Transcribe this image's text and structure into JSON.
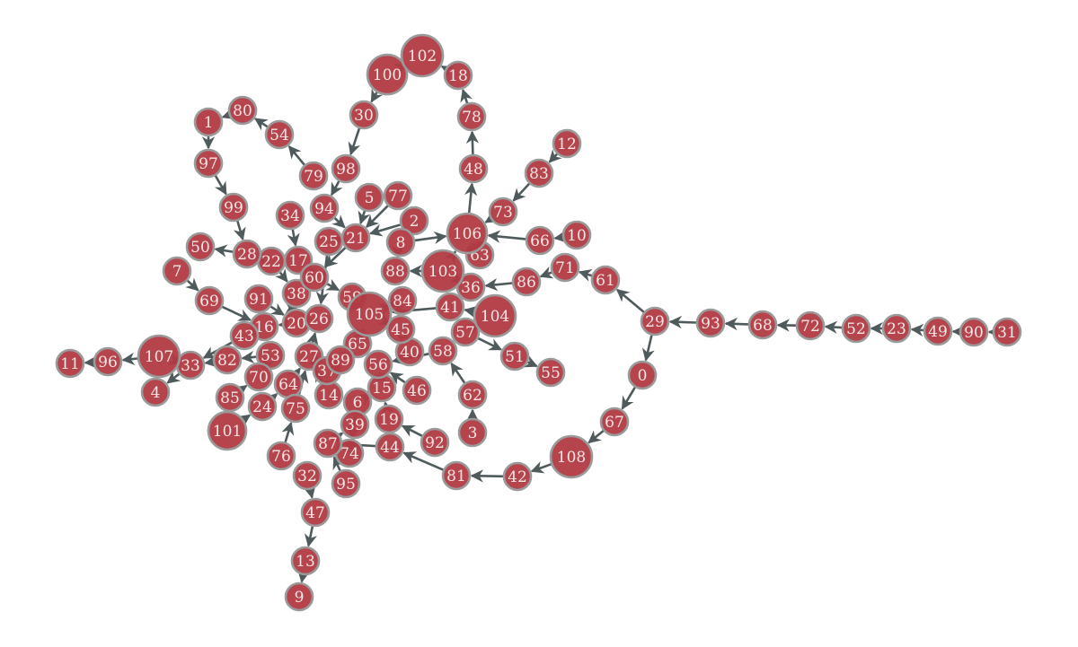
{
  "graph": {
    "node_color": "#b23a43",
    "node_border_color": "#9a9a9a",
    "edge_color": "#4f5a5c",
    "label_color": "#f4e6e6",
    "directed": true,
    "nodes": [
      {
        "id": "0"
      },
      {
        "id": "1"
      },
      {
        "id": "2"
      },
      {
        "id": "3"
      },
      {
        "id": "4"
      },
      {
        "id": "5"
      },
      {
        "id": "6"
      },
      {
        "id": "7"
      },
      {
        "id": "8"
      },
      {
        "id": "9"
      },
      {
        "id": "10"
      },
      {
        "id": "11"
      },
      {
        "id": "12"
      },
      {
        "id": "13"
      },
      {
        "id": "14"
      },
      {
        "id": "15"
      },
      {
        "id": "16"
      },
      {
        "id": "17"
      },
      {
        "id": "18"
      },
      {
        "id": "19"
      },
      {
        "id": "20"
      },
      {
        "id": "21"
      },
      {
        "id": "22"
      },
      {
        "id": "23"
      },
      {
        "id": "24"
      },
      {
        "id": "25"
      },
      {
        "id": "26"
      },
      {
        "id": "27"
      },
      {
        "id": "28"
      },
      {
        "id": "29"
      },
      {
        "id": "30"
      },
      {
        "id": "31"
      },
      {
        "id": "32"
      },
      {
        "id": "33"
      },
      {
        "id": "34"
      },
      {
        "id": "36"
      },
      {
        "id": "37"
      },
      {
        "id": "38"
      },
      {
        "id": "39"
      },
      {
        "id": "40"
      },
      {
        "id": "41"
      },
      {
        "id": "42"
      },
      {
        "id": "43"
      },
      {
        "id": "44"
      },
      {
        "id": "45"
      },
      {
        "id": "46"
      },
      {
        "id": "47"
      },
      {
        "id": "48"
      },
      {
        "id": "49"
      },
      {
        "id": "50"
      },
      {
        "id": "51"
      },
      {
        "id": "52"
      },
      {
        "id": "53"
      },
      {
        "id": "54"
      },
      {
        "id": "55"
      },
      {
        "id": "56"
      },
      {
        "id": "57"
      },
      {
        "id": "58"
      },
      {
        "id": "59"
      },
      {
        "id": "60"
      },
      {
        "id": "61"
      },
      {
        "id": "62"
      },
      {
        "id": "63"
      },
      {
        "id": "64"
      },
      {
        "id": "65"
      },
      {
        "id": "66"
      },
      {
        "id": "67"
      },
      {
        "id": "68"
      },
      {
        "id": "69"
      },
      {
        "id": "70"
      },
      {
        "id": "71"
      },
      {
        "id": "72"
      },
      {
        "id": "73"
      },
      {
        "id": "74"
      },
      {
        "id": "75"
      },
      {
        "id": "76"
      },
      {
        "id": "77"
      },
      {
        "id": "78"
      },
      {
        "id": "79"
      },
      {
        "id": "80"
      },
      {
        "id": "81"
      },
      {
        "id": "82"
      },
      {
        "id": "83"
      },
      {
        "id": "84"
      },
      {
        "id": "85"
      },
      {
        "id": "86"
      },
      {
        "id": "87"
      },
      {
        "id": "88"
      },
      {
        "id": "89"
      },
      {
        "id": "90"
      },
      {
        "id": "91"
      },
      {
        "id": "92"
      },
      {
        "id": "93"
      },
      {
        "id": "94"
      },
      {
        "id": "95"
      },
      {
        "id": "96"
      },
      {
        "id": "97"
      },
      {
        "id": "98"
      },
      {
        "id": "99"
      },
      {
        "id": "100"
      },
      {
        "id": "101"
      },
      {
        "id": "102"
      },
      {
        "id": "103"
      },
      {
        "id": "104"
      },
      {
        "id": "105"
      },
      {
        "id": "106"
      },
      {
        "id": "107"
      },
      {
        "id": "108"
      }
    ],
    "edges": [
      [
        "31",
        "90"
      ],
      [
        "90",
        "49"
      ],
      [
        "49",
        "23"
      ],
      [
        "23",
        "52"
      ],
      [
        "52",
        "72"
      ],
      [
        "72",
        "68"
      ],
      [
        "68",
        "93"
      ],
      [
        "93",
        "29"
      ],
      [
        "29",
        "61"
      ],
      [
        "29",
        "0"
      ],
      [
        "61",
        "71"
      ],
      [
        "71",
        "86"
      ],
      [
        "86",
        "36"
      ],
      [
        "0",
        "67"
      ],
      [
        "67",
        "108"
      ],
      [
        "108",
        "42"
      ],
      [
        "42",
        "81"
      ],
      [
        "81",
        "44"
      ],
      [
        "10",
        "66"
      ],
      [
        "66",
        "106"
      ],
      [
        "12",
        "83"
      ],
      [
        "83",
        "73"
      ],
      [
        "73",
        "106"
      ],
      [
        "106",
        "48"
      ],
      [
        "48",
        "78"
      ],
      [
        "78",
        "18"
      ],
      [
        "18",
        "102"
      ],
      [
        "102",
        "100"
      ],
      [
        "100",
        "30"
      ],
      [
        "30",
        "98"
      ],
      [
        "98",
        "94"
      ],
      [
        "94",
        "21"
      ],
      [
        "79",
        "54"
      ],
      [
        "54",
        "80"
      ],
      [
        "80",
        "1"
      ],
      [
        "1",
        "97"
      ],
      [
        "97",
        "99"
      ],
      [
        "99",
        "28"
      ],
      [
        "28",
        "50"
      ],
      [
        "28",
        "22"
      ],
      [
        "7",
        "69"
      ],
      [
        "69",
        "16"
      ],
      [
        "43",
        "33"
      ],
      [
        "33",
        "107"
      ],
      [
        "33",
        "4"
      ],
      [
        "107",
        "96"
      ],
      [
        "96",
        "11"
      ],
      [
        "82",
        "33"
      ],
      [
        "47",
        "13"
      ],
      [
        "13",
        "9"
      ],
      [
        "32",
        "47"
      ],
      [
        "76",
        "75"
      ],
      [
        "3",
        "62"
      ],
      [
        "62",
        "58"
      ],
      [
        "92",
        "19"
      ],
      [
        "51",
        "55"
      ],
      [
        "57",
        "51"
      ],
      [
        "104",
        "41"
      ],
      [
        "104",
        "57"
      ],
      [
        "2",
        "21"
      ],
      [
        "77",
        "21"
      ],
      [
        "5",
        "21"
      ],
      [
        "21",
        "60"
      ],
      [
        "34",
        "17"
      ],
      [
        "8",
        "106"
      ],
      [
        "88",
        "8"
      ],
      [
        "103",
        "106"
      ],
      [
        "103",
        "88"
      ],
      [
        "36",
        "103"
      ],
      [
        "84",
        "105"
      ],
      [
        "45",
        "105"
      ],
      [
        "41",
        "105"
      ],
      [
        "58",
        "56"
      ],
      [
        "40",
        "45"
      ],
      [
        "46",
        "56"
      ],
      [
        "15",
        "6"
      ],
      [
        "19",
        "15"
      ],
      [
        "44",
        "87"
      ],
      [
        "87",
        "39"
      ],
      [
        "39",
        "74"
      ],
      [
        "14",
        "27"
      ],
      [
        "75",
        "27"
      ],
      [
        "64",
        "27"
      ],
      [
        "24",
        "64"
      ],
      [
        "85",
        "70"
      ],
      [
        "101",
        "24"
      ],
      [
        "70",
        "53"
      ],
      [
        "53",
        "82"
      ],
      [
        "27",
        "26"
      ],
      [
        "26",
        "20"
      ],
      [
        "20",
        "16"
      ],
      [
        "16",
        "43"
      ],
      [
        "91",
        "20"
      ],
      [
        "38",
        "20"
      ],
      [
        "22",
        "38"
      ],
      [
        "17",
        "60"
      ],
      [
        "60",
        "59"
      ],
      [
        "59",
        "105"
      ],
      [
        "105",
        "65"
      ],
      [
        "65",
        "89"
      ],
      [
        "89",
        "37"
      ],
      [
        "37",
        "27"
      ],
      [
        "25",
        "26"
      ],
      [
        "21",
        "25"
      ],
      [
        "105",
        "84"
      ],
      [
        "95",
        "87"
      ],
      [
        "6",
        "74"
      ],
      [
        "56",
        "15"
      ]
    ]
  }
}
